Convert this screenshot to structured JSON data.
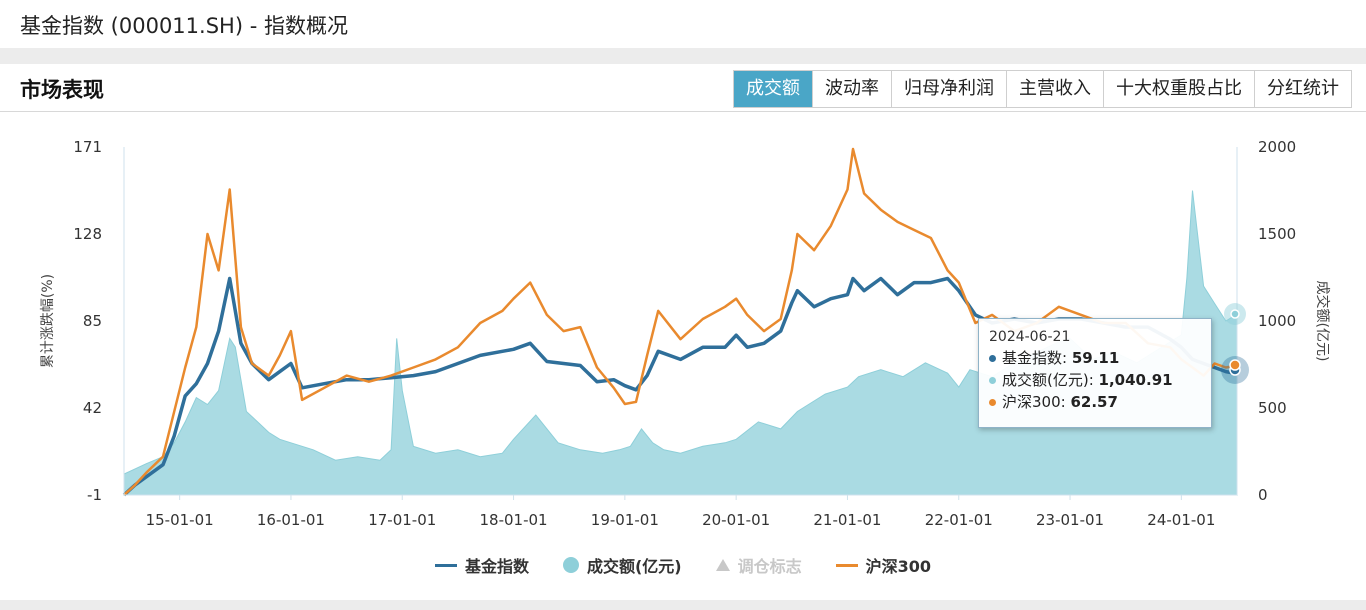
{
  "header": {
    "title": "基金指数 (000011.SH) - 指数概况"
  },
  "section": {
    "title": "市场表现"
  },
  "tabs": [
    "成交额",
    "波动率",
    "归母净利润",
    "主营收入",
    "十大权重股占比",
    "分红统计"
  ],
  "active_tab": 0,
  "tooltip": {
    "date": "2024-06-21",
    "rows": [
      {
        "label": "基金指数:",
        "value": "59.11",
        "color": "#2f6f9a"
      },
      {
        "label": "成交额(亿元):",
        "value": "1,040.91",
        "color": "#8ecfd9"
      },
      {
        "label": "沪深300:",
        "value": "62.57",
        "color": "#e98a2e"
      }
    ]
  },
  "legend": [
    {
      "label": "基金指数",
      "marker": "line",
      "color": "#2f6f9a",
      "enabled": true
    },
    {
      "label": "成交额(亿元)",
      "marker": "circle",
      "color": "#8ecfd9",
      "enabled": true
    },
    {
      "label": "调仓标志",
      "marker": "triangle",
      "color": "#c8c8c8",
      "enabled": false
    },
    {
      "label": "沪深300",
      "marker": "line",
      "color": "#e98a2e",
      "enabled": true
    }
  ],
  "chart_data": {
    "type": "line",
    "ylabel": "累计涨跌幅(%)",
    "y2label": "成交额(亿元)",
    "ylim": [
      -1,
      171
    ],
    "y2lim": [
      0,
      2000
    ],
    "yticks": [
      "171",
      "128",
      "85",
      "42",
      "-1"
    ],
    "y2ticks": [
      "2000",
      "1500",
      "1000",
      "500",
      "0"
    ],
    "xlim": [
      2014.5,
      2024.5
    ],
    "xticks": [
      {
        "label": "15-01-01",
        "value": 2015.0
      },
      {
        "label": "16-01-01",
        "value": 2016.0
      },
      {
        "label": "17-01-01",
        "value": 2017.0
      },
      {
        "label": "18-01-01",
        "value": 2018.0
      },
      {
        "label": "19-01-01",
        "value": 2019.0
      },
      {
        "label": "20-01-01",
        "value": 2020.0
      },
      {
        "label": "21-01-01",
        "value": 2021.0
      },
      {
        "label": "22-01-01",
        "value": 2022.0
      },
      {
        "label": "23-01-01",
        "value": 2023.0
      },
      {
        "label": "24-01-01",
        "value": 2024.0
      }
    ],
    "grid": false,
    "legend": "bottom",
    "series": [
      {
        "name": "成交额(亿元)",
        "axis": "right",
        "kind": "area",
        "color": "#8ecfd9",
        "x": [
          2014.5,
          2014.7,
          2014.85,
          2014.95,
          2015.05,
          2015.15,
          2015.25,
          2015.35,
          2015.45,
          2015.5,
          2015.6,
          2015.7,
          2015.8,
          2015.9,
          2016.0,
          2016.1,
          2016.2,
          2016.4,
          2016.6,
          2016.8,
          2016.9,
          2016.95,
          2017.0,
          2017.1,
          2017.3,
          2017.5,
          2017.7,
          2017.9,
          2018.0,
          2018.2,
          2018.4,
          2018.6,
          2018.8,
          2018.95,
          2019.05,
          2019.15,
          2019.25,
          2019.35,
          2019.5,
          2019.7,
          2019.9,
          2020.0,
          2020.2,
          2020.4,
          2020.55,
          2020.65,
          2020.8,
          2021.0,
          2021.1,
          2021.3,
          2021.5,
          2021.7,
          2021.9,
          2022.0,
          2022.1,
          2022.3,
          2022.5,
          2022.7,
          2022.9,
          2023.0,
          2023.2,
          2023.4,
          2023.6,
          2023.8,
          2023.9,
          2024.0,
          2024.05,
          2024.1,
          2024.2,
          2024.3,
          2024.4,
          2024.5
        ],
        "values": [
          120,
          180,
          220,
          300,
          420,
          560,
          520,
          600,
          900,
          850,
          480,
          420,
          360,
          320,
          300,
          280,
          260,
          200,
          220,
          200,
          260,
          900,
          600,
          280,
          240,
          260,
          220,
          240,
          320,
          460,
          300,
          260,
          240,
          260,
          280,
          380,
          300,
          260,
          240,
          280,
          300,
          320,
          420,
          380,
          480,
          520,
          580,
          620,
          680,
          720,
          680,
          760,
          700,
          620,
          720,
          680,
          760,
          820,
          880,
          900,
          780,
          820,
          760,
          840,
          880,
          920,
          1250,
          1750,
          1200,
          1100,
          1000,
          1040
        ]
      },
      {
        "name": "基金指数",
        "axis": "left",
        "kind": "line",
        "color": "#2f6f9a",
        "x": [
          2014.5,
          2014.6,
          2014.7,
          2014.85,
          2014.95,
          2015.05,
          2015.15,
          2015.25,
          2015.35,
          2015.45,
          2015.55,
          2015.65,
          2015.8,
          2015.9,
          2016.0,
          2016.1,
          2016.3,
          2016.5,
          2016.7,
          2016.9,
          2017.1,
          2017.3,
          2017.5,
          2017.7,
          2017.9,
          2018.0,
          2018.15,
          2018.3,
          2018.45,
          2018.6,
          2018.75,
          2018.9,
          2019.0,
          2019.1,
          2019.2,
          2019.3,
          2019.5,
          2019.7,
          2019.9,
          2020.0,
          2020.1,
          2020.25,
          2020.4,
          2020.5,
          2020.55,
          2020.7,
          2020.85,
          2021.0,
          2021.05,
          2021.15,
          2021.3,
          2021.45,
          2021.6,
          2021.75,
          2021.9,
          2022.0,
          2022.15,
          2022.3,
          2022.5,
          2022.7,
          2022.9,
          2023.1,
          2023.3,
          2023.5,
          2023.7,
          2023.9,
          2024.0,
          2024.1,
          2024.2,
          2024.3,
          2024.4,
          2024.5
        ],
        "values": [
          -1,
          4,
          8,
          14,
          28,
          48,
          54,
          64,
          80,
          106,
          74,
          64,
          56,
          60,
          64,
          52,
          54,
          56,
          56,
          57,
          58,
          60,
          64,
          68,
          70,
          71,
          74,
          65,
          64,
          63,
          55,
          56,
          53,
          51,
          58,
          70,
          66,
          72,
          72,
          78,
          72,
          74,
          80,
          94,
          100,
          92,
          96,
          98,
          106,
          100,
          106,
          98,
          104,
          104,
          106,
          100,
          88,
          84,
          86,
          84,
          86,
          86,
          84,
          82,
          82,
          76,
          72,
          66,
          64,
          62,
          60,
          59
        ]
      },
      {
        "name": "沪深300",
        "axis": "left",
        "kind": "line",
        "color": "#e98a2e",
        "x": [
          2014.5,
          2014.6,
          2014.7,
          2014.85,
          2014.95,
          2015.05,
          2015.15,
          2015.25,
          2015.35,
          2015.45,
          2015.55,
          2015.65,
          2015.8,
          2015.9,
          2016.0,
          2016.1,
          2016.3,
          2016.5,
          2016.7,
          2016.9,
          2017.1,
          2017.3,
          2017.5,
          2017.7,
          2017.9,
          2018.0,
          2018.15,
          2018.3,
          2018.45,
          2018.6,
          2018.75,
          2018.9,
          2019.0,
          2019.1,
          2019.2,
          2019.3,
          2019.5,
          2019.7,
          2019.9,
          2020.0,
          2020.1,
          2020.25,
          2020.4,
          2020.5,
          2020.55,
          2020.7,
          2020.85,
          2021.0,
          2021.05,
          2021.15,
          2021.3,
          2021.45,
          2021.6,
          2021.75,
          2021.9,
          2022.0,
          2022.15,
          2022.3,
          2022.5,
          2022.7,
          2022.9,
          2023.1,
          2023.3,
          2023.5,
          2023.7,
          2023.9,
          2024.0,
          2024.1,
          2024.2,
          2024.3,
          2024.4,
          2024.5
        ],
        "values": [
          -1,
          4,
          10,
          18,
          40,
          62,
          82,
          128,
          110,
          150,
          82,
          64,
          58,
          68,
          80,
          46,
          52,
          58,
          55,
          58,
          62,
          66,
          72,
          84,
          90,
          96,
          104,
          88,
          80,
          82,
          62,
          52,
          44,
          45,
          68,
          90,
          76,
          86,
          92,
          96,
          88,
          80,
          86,
          110,
          128,
          120,
          132,
          150,
          170,
          148,
          140,
          134,
          130,
          126,
          110,
          104,
          84,
          88,
          80,
          84,
          92,
          88,
          84,
          84,
          74,
          72,
          66,
          62,
          58,
          64,
          62,
          63
        ]
      }
    ]
  }
}
